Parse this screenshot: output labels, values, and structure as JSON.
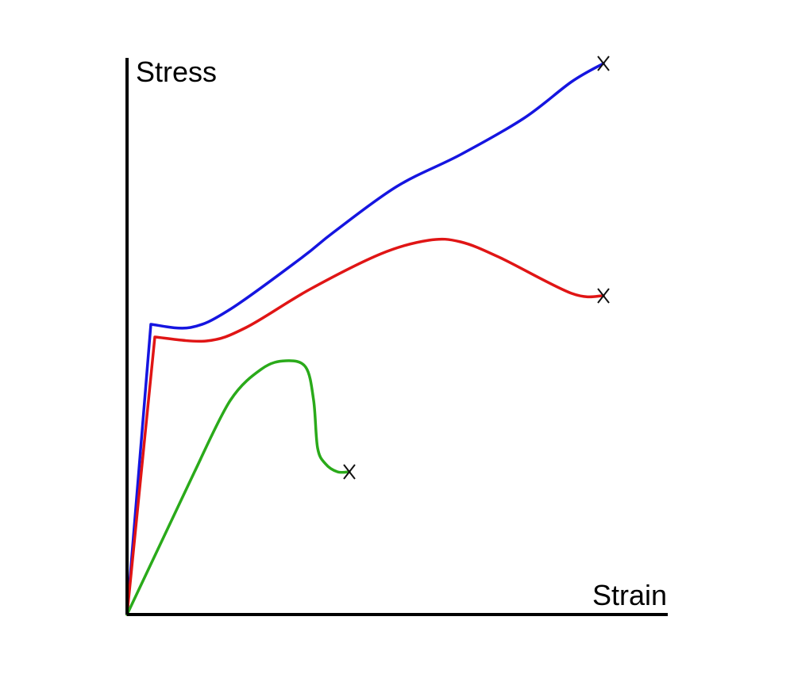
{
  "chart_data": {
    "type": "line",
    "title": "",
    "xlabel": "Strain",
    "ylabel": "Stress",
    "xlim": [
      0,
      680
    ],
    "ylim": [
      0,
      700
    ],
    "grid": false,
    "legend": "none",
    "axis_ticks": "none",
    "series": [
      {
        "color": "#1515e0",
        "points": [
          [
            0,
            0
          ],
          [
            30,
            366
          ],
          [
            80,
            362
          ],
          [
            130,
            385
          ],
          [
            220,
            450
          ],
          [
            260,
            482
          ],
          [
            340,
            540
          ],
          [
            420,
            580
          ],
          [
            500,
            626
          ],
          [
            560,
            672
          ],
          [
            600,
            695
          ]
        ],
        "end_marker": "X"
      },
      {
        "color": "#e01515",
        "points": [
          [
            0,
            0
          ],
          [
            35,
            350
          ],
          [
            100,
            345
          ],
          [
            150,
            362
          ],
          [
            230,
            410
          ],
          [
            320,
            455
          ],
          [
            380,
            472
          ],
          [
            420,
            470
          ],
          [
            470,
            450
          ],
          [
            560,
            405
          ],
          [
            600,
            402
          ]
        ],
        "end_marker": "X"
      },
      {
        "color": "#2aaa1a",
        "points": [
          [
            0,
            0
          ],
          [
            85,
            180
          ],
          [
            130,
            270
          ],
          [
            170,
            310
          ],
          [
            200,
            320
          ],
          [
            225,
            312
          ],
          [
            235,
            270
          ],
          [
            240,
            210
          ],
          [
            250,
            190
          ],
          [
            265,
            180
          ],
          [
            280,
            180
          ]
        ],
        "end_marker": "X"
      }
    ]
  }
}
